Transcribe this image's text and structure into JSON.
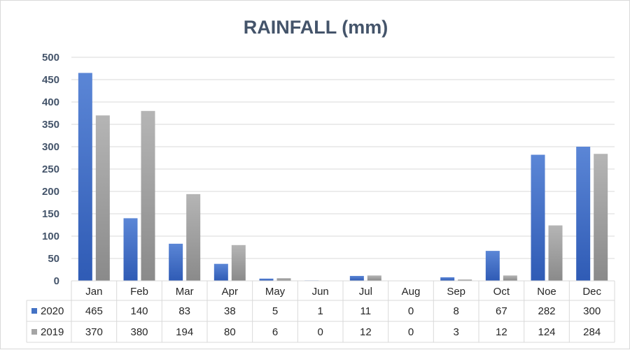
{
  "chart_data": {
    "type": "bar",
    "title": "RAINFALL (mm)",
    "categories": [
      "Jan",
      "Feb",
      "Mar",
      "Apr",
      "May",
      "Jun",
      "Jul",
      "Aug",
      "Sep",
      "Oct",
      "Noe",
      "Dec"
    ],
    "series": [
      {
        "name": "2020",
        "values": [
          465,
          140,
          83,
          38,
          5,
          1,
          11,
          0,
          8,
          67,
          282,
          300
        ],
        "color": "#4472c4"
      },
      {
        "name": "2019",
        "values": [
          370,
          380,
          194,
          80,
          6,
          0,
          12,
          0,
          3,
          12,
          124,
          284
        ],
        "color": "#a5a5a5"
      }
    ],
    "ylim": [
      0,
      500
    ],
    "yticks": [
      0,
      50,
      100,
      150,
      200,
      250,
      300,
      350,
      400,
      450,
      500
    ],
    "grid": true,
    "legend": "data-table"
  }
}
